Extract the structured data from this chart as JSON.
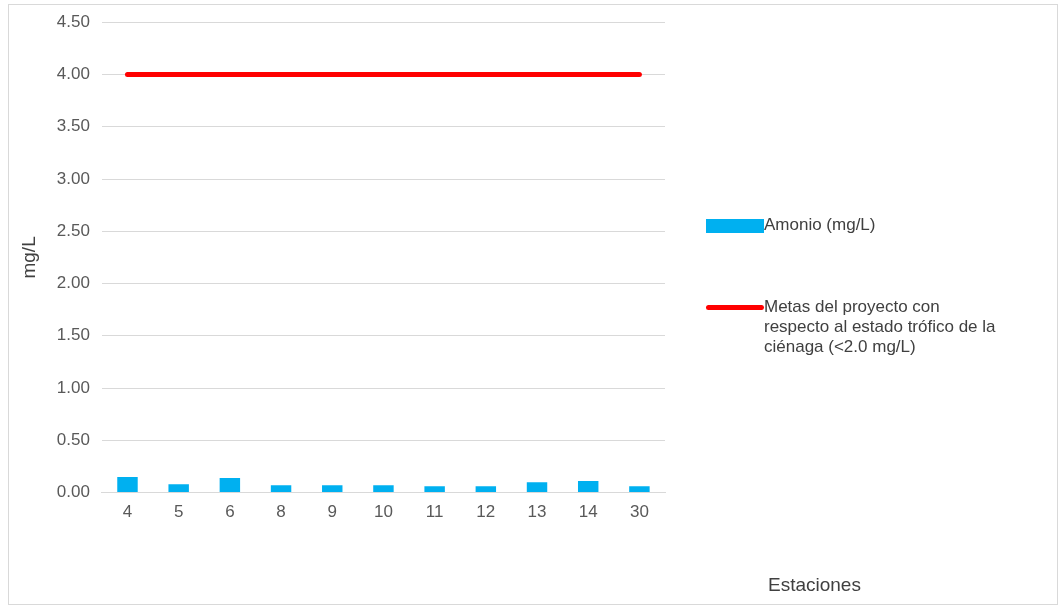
{
  "chart_data": {
    "type": "bar",
    "annotations": [
      "Estaciones"
    ],
    "ylabel": "mg/L",
    "categories": [
      "4",
      "5",
      "6",
      "8",
      "9",
      "10",
      "11",
      "12",
      "13",
      "14",
      "30"
    ],
    "series": [
      {
        "name": "Amonio (mg/L)",
        "color": "#00b0f0",
        "values": [
          0.15,
          0.08,
          0.14,
          0.07,
          0.07,
          0.07,
          0.06,
          0.06,
          0.1,
          0.11,
          0.06
        ]
      },
      {
        "name": "Metas del proyecto con respecto al estado trófico de la ciénaga (<2.0 mg/L)",
        "type": "line",
        "color": "#ff0000",
        "values": [
          4,
          4,
          4,
          4,
          4,
          4,
          4,
          4,
          4,
          4,
          4
        ]
      }
    ],
    "ylim": [
      0,
      4.5
    ],
    "yticks": [
      {
        "value": 0,
        "label": "0.00"
      },
      {
        "value": 0.5,
        "label": "0.50"
      },
      {
        "value": 1,
        "label": "1.00"
      },
      {
        "value": 1.5,
        "label": "1.50"
      },
      {
        "value": 2,
        "label": "2.00"
      },
      {
        "value": 2.5,
        "label": "2.50"
      },
      {
        "value": 3,
        "label": "3.00"
      },
      {
        "value": 3.5,
        "label": "3.50"
      },
      {
        "value": 4,
        "label": "4.00"
      },
      {
        "value": 4.5,
        "label": "4.50"
      }
    ],
    "grid": "y",
    "legend": "right",
    "marker": "none"
  }
}
